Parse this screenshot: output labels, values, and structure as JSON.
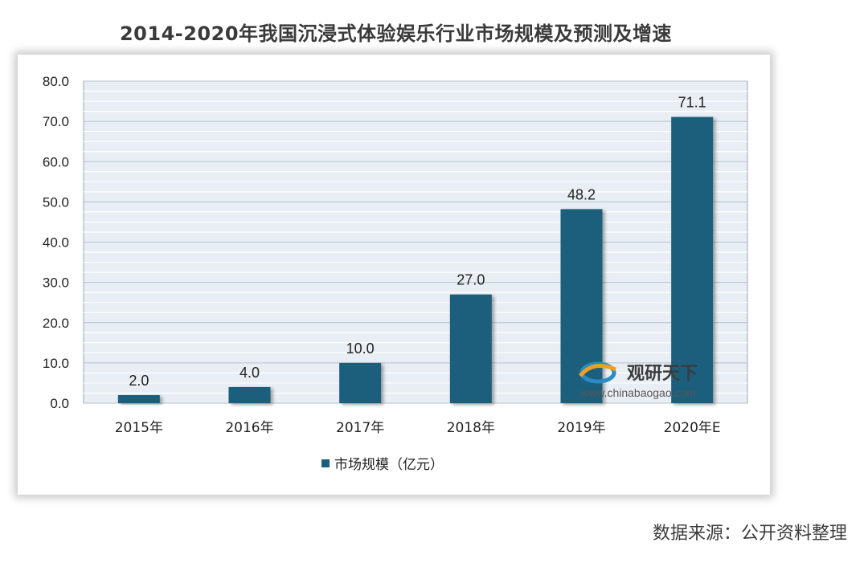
{
  "page_title": "2014-2020年我国沉浸式体验娱乐行业市场规模及预测及增速",
  "source_text": "数据来源：公开资料整理",
  "watermark": {
    "name": "观研天下",
    "url": "www.chinabaogao.com"
  },
  "colors": {
    "bar": "#1b5f7d",
    "plot_bg": "#e8eef4",
    "grid": "#ffffff"
  },
  "chart_data": {
    "type": "bar",
    "title": "2014-2020年我国沉浸式体验娱乐行业市场规模及预测及增速",
    "categories": [
      "2015年",
      "2016年",
      "2017年",
      "2018年",
      "2019年",
      "2020年E"
    ],
    "series": [
      {
        "name": "市场规模（亿元）",
        "values": [
          2.0,
          4.0,
          10.0,
          27.0,
          48.2,
          71.1
        ]
      }
    ],
    "data_labels": [
      "2.0",
      "4.0",
      "10.0",
      "27.0",
      "48.2",
      "71.1"
    ],
    "y_ticks": [
      "0.0",
      "10.0",
      "20.0",
      "30.0",
      "40.0",
      "50.0",
      "60.0",
      "70.0",
      "80.0"
    ],
    "ylim": [
      0,
      80
    ],
    "xlabel": "",
    "ylabel": "",
    "legend_position": "bottom"
  }
}
